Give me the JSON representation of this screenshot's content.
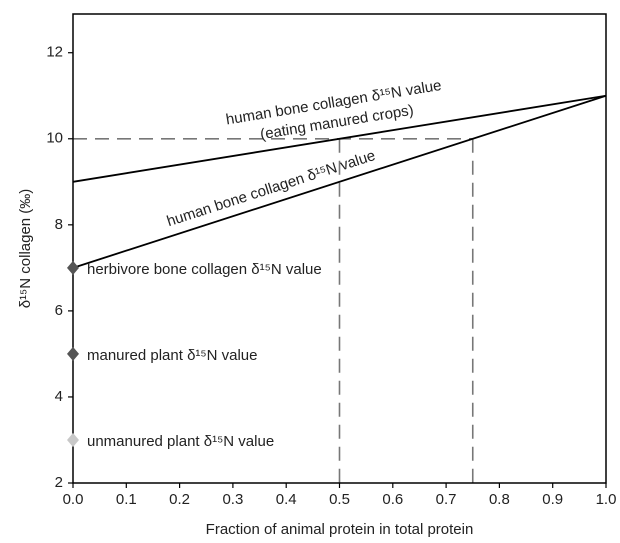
{
  "chart_data": {
    "type": "line",
    "xlabel": "Fraction of animal protein in total protein",
    "ylabel": "δ¹⁵N collagen (‰)",
    "xlim": [
      0,
      1
    ],
    "ylim": [
      2,
      12.9
    ],
    "xticks": [
      {
        "value": 0,
        "label": "0.0"
      },
      0.1,
      0.2,
      0.3,
      0.4,
      0.5,
      0.6,
      0.7,
      0.8,
      0.9,
      {
        "value": 1,
        "label": "1.0"
      }
    ],
    "yticks": [
      2,
      4,
      6,
      8,
      10,
      12
    ],
    "series": [
      {
        "x": [
          0,
          1
        ],
        "values": [
          9,
          11
        ],
        "color": "#000000",
        "labels": [
          "human bone collagen δ¹⁵N value",
          "(eating manured crops)"
        ]
      },
      {
        "x": [
          0,
          1
        ],
        "values": [
          7,
          11
        ],
        "color": "#000000",
        "labels": [
          "human bone collagen δ¹⁵N value"
        ]
      }
    ],
    "points": [
      {
        "x": 0,
        "value": 7,
        "color": "#555555",
        "label": "herbivore bone collagen δ¹⁵N value"
      },
      {
        "x": 0,
        "value": 5,
        "color": "#555555",
        "label": "manured plant δ¹⁵N value"
      },
      {
        "x": 0,
        "value": 3,
        "color": "#c8c8c8",
        "label": "unmanured plant δ¹⁵N value"
      }
    ],
    "reference_lines": {
      "y": 10,
      "x": [
        0.5,
        0.75
      ],
      "color": "#777777"
    }
  }
}
